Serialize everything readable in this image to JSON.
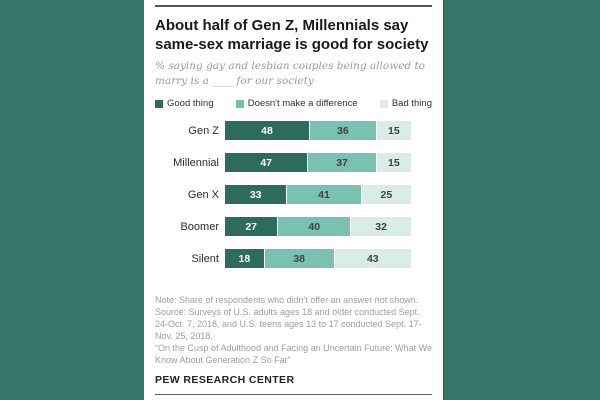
{
  "page": {
    "background_color": "#367668",
    "card_background": "#ffffff"
  },
  "chart_data": {
    "type": "bar",
    "orientation": "horizontal",
    "stacked": true,
    "legend_position": "top",
    "grid": false,
    "axis_max": 100,
    "title": "About half of Gen Z, Millennials say same-sex marriage is good for society",
    "title_lines": [
      "About half of Gen Z, Millennials say",
      "same-sex marriage is good for society"
    ],
    "subtitle": "% saying gay and lesbian couples being allowed to marry is a ____ for our society",
    "subtitle_lines": [
      "% saying gay and lesbian couples being allowed to",
      "marry is a ____ for our society"
    ],
    "categories": [
      "Gen Z",
      "Millennial",
      "Gen X",
      "Boomer",
      "Silent"
    ],
    "series": [
      {
        "name": "Good thing",
        "color": "#2e6b5f",
        "value_text_color": "#ffffff",
        "values": [
          48,
          47,
          33,
          27,
          18
        ]
      },
      {
        "name": "Doesn't make a difference",
        "color": "#7ac1b1",
        "value_text_color": "#424242",
        "values": [
          36,
          37,
          41,
          40,
          38
        ]
      },
      {
        "name": "Bad thing",
        "color": "#d9ece6",
        "value_text_color": "#424242",
        "values": [
          15,
          15,
          25,
          32,
          43
        ]
      }
    ],
    "note": "Note: Share of respondents who didn't offer an answer not shown.",
    "source": "Source: Surveys of U.S. adults ages 18 and older conducted Sept. 24-Oct. 7, 2018, and U.S. teens ages 13 to 17 conducted Sept. 17-Nov. 25, 2018.",
    "quote": "“On the Cusp of Adulthood and Facing an Uncertain Future: What We Know About Generation Z So Far”",
    "footer": "PEW RESEARCH CENTER"
  }
}
